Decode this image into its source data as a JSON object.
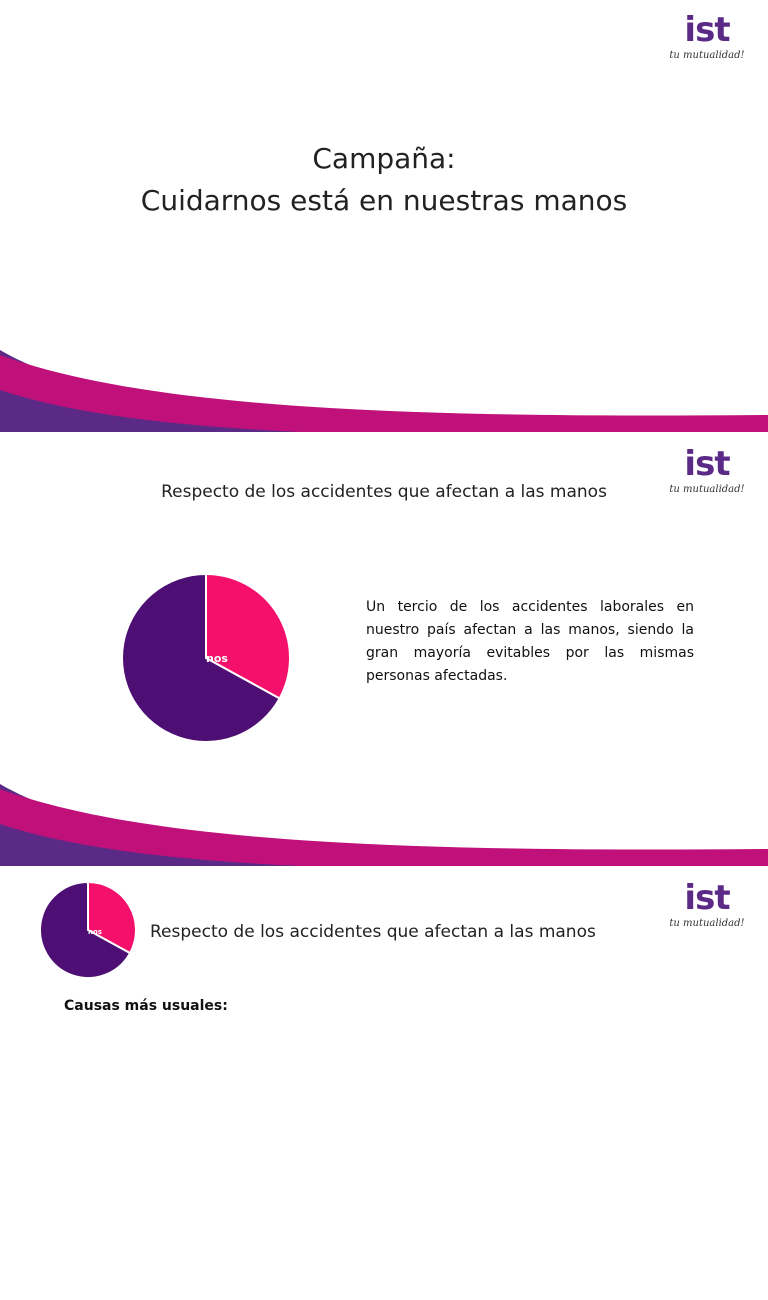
{
  "slides": [
    {
      "logo": {
        "brand": "ist",
        "tagline": "tu mutualidad!"
      },
      "title_lines": [
        "Campaña:",
        "Cuidarnos está en nuestras manos"
      ]
    },
    {
      "logo": {
        "brand": "ist",
        "tagline": "tu mutualidad!"
      },
      "title": "Respecto de los accidentes que afectan a las manos",
      "pie": {
        "values": [
          33,
          67
        ],
        "colors": [
          "#f5106b",
          "#4e0f74"
        ],
        "label": "nos"
      },
      "text": "Un tercio de los accidentes laborales en nuestro país afectan a las manos, siendo la gran mayoría evitables por las mismas personas afectadas."
    },
    {
      "logo": {
        "brand": "ist",
        "tagline": "tu mutualidad!"
      },
      "title": "Respecto de los accidentes que afectan a las manos",
      "pie": {
        "values": [
          33,
          67
        ],
        "colors": [
          "#f5106b",
          "#4e0f74"
        ],
        "label": "nos"
      },
      "heading": "Causas más usuales:"
    }
  ]
}
